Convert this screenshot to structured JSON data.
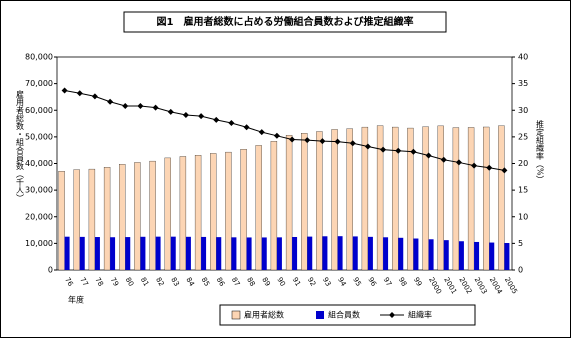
{
  "chart_data": {
    "type": "bar-line",
    "title": "図1　雇用者総数に占める労働組合員数および推定組織率",
    "x_label": "年度",
    "y_label": "雇用者総数・組合員数（千人）",
    "y2_label": "推定組織率（%）",
    "categories": [
      "76",
      "77",
      "78",
      "79",
      "80",
      "81",
      "82",
      "83",
      "84",
      "85",
      "86",
      "87",
      "88",
      "89",
      "90",
      "91",
      "92",
      "93",
      "94",
      "95",
      "96",
      "97",
      "98",
      "99",
      "2000",
      "2001",
      "2002",
      "2003",
      "2004",
      "2005"
    ],
    "series": [
      {
        "name": "雇用者総数",
        "color": "#fcd5b4",
        "values": [
          37100,
          37700,
          37900,
          38600,
          39700,
          40400,
          40900,
          42100,
          42650,
          43130,
          43790,
          44280,
          45380,
          46790,
          48350,
          50620,
          51390,
          52020,
          52790,
          53090,
          53670,
          54220,
          53680,
          53310,
          53790,
          54130,
          53490,
          53550,
          53710,
          54160
        ]
      },
      {
        "name": "組合員数",
        "color": "#0000cc",
        "values": [
          12509,
          12437,
          12383,
          12309,
          12369,
          12471,
          12526,
          12520,
          12464,
          12418,
          12343,
          12272,
          12227,
          12227,
          12265,
          12397,
          12541,
          12663,
          12699,
          12614,
          12451,
          12285,
          12093,
          11825,
          11539,
          11212,
          10801,
          10531,
          10309,
          10138
        ]
      },
      {
        "name": "組織率",
        "color": "#000000",
        "axis": "y2",
        "values": [
          33.7,
          33.2,
          32.6,
          31.6,
          30.8,
          30.8,
          30.5,
          29.7,
          29.1,
          28.9,
          28.2,
          27.6,
          26.8,
          25.9,
          25.2,
          24.5,
          24.4,
          24.2,
          24.1,
          23.8,
          23.2,
          22.6,
          22.4,
          22.2,
          21.5,
          20.7,
          20.2,
          19.6,
          19.2,
          18.7
        ]
      }
    ],
    "ylim": [
      0,
      80000
    ],
    "yticks": [
      0,
      {
        "value": 10000,
        "label": "10,000"
      },
      {
        "value": 20000,
        "label": "20,000"
      },
      {
        "value": 30000,
        "label": "30,000"
      },
      {
        "value": 40000,
        "label": "40,000"
      },
      {
        "value": 50000,
        "label": "50,000"
      },
      {
        "value": 60000,
        "label": "60,000"
      },
      {
        "value": 70000,
        "label": "70,000"
      },
      {
        "value": 80000,
        "label": "80,000"
      }
    ],
    "y2lim": [
      0,
      40
    ],
    "y2ticks": [
      0,
      5,
      10,
      15,
      20,
      25,
      30,
      35,
      40
    ]
  }
}
